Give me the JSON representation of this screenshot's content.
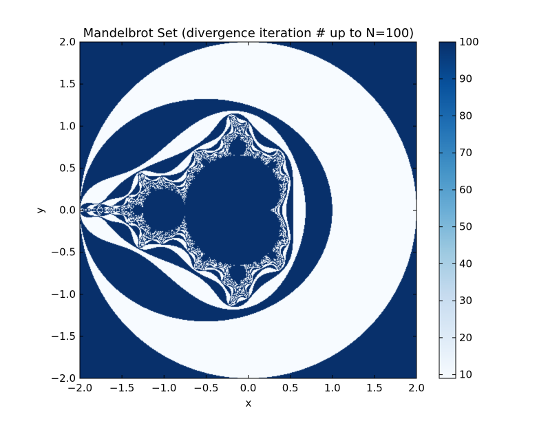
{
  "chart_data": {
    "type": "heatmap",
    "title": "Mandelbrot Set (divergence iteration # up to N=100)",
    "xlabel": "x",
    "ylabel": "y",
    "xlim": [
      -2.0,
      2.0
    ],
    "ylim": [
      -2.0,
      2.0
    ],
    "x_ticks": [
      -2.0,
      -1.5,
      -1.0,
      -0.5,
      0.0,
      0.5,
      1.0,
      1.5,
      2.0
    ],
    "y_ticks": [
      -2.0,
      -1.5,
      -1.0,
      -0.5,
      0.0,
      0.5,
      1.0,
      1.5,
      2.0
    ],
    "x_tick_labels": [
      "−2.0",
      "−1.5",
      "−1.0",
      "−0.5",
      "0.0",
      "0.5",
      "1.0",
      "1.5",
      "2.0"
    ],
    "y_tick_labels": [
      "−2.0",
      "−1.5",
      "−1.0",
      "−0.5",
      "0.0",
      "0.5",
      "1.0",
      "1.5",
      "2.0"
    ],
    "max_iterations": 100,
    "colorbar": {
      "range": [
        9,
        100
      ],
      "ticks": [
        10,
        20,
        30,
        40,
        50,
        60,
        70,
        80,
        90,
        100
      ],
      "tick_labels": [
        "10",
        "20",
        "30",
        "40",
        "50",
        "60",
        "70",
        "80",
        "90",
        "100"
      ],
      "colormap": "Blues"
    },
    "colors": {
      "low": "#f7fbff",
      "high": "#08306b"
    },
    "grid": false
  }
}
